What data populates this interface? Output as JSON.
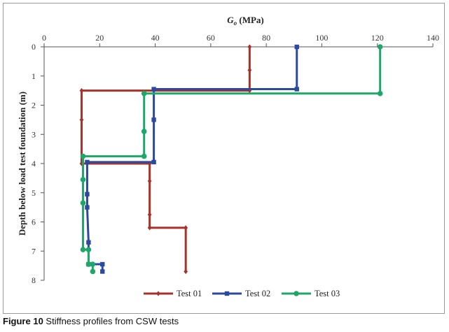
{
  "chart_data": {
    "type": "line",
    "title": "",
    "xlabel": {
      "symbol": "G",
      "subscript": "o",
      "units": " (MPa)"
    },
    "ylabel": "Depth below load test foundation (m)",
    "xlim": [
      0,
      140
    ],
    "ylim": [
      0,
      8
    ],
    "xticks": [
      0,
      20,
      40,
      60,
      80,
      100,
      120,
      140
    ],
    "yticks": [
      0,
      1,
      2,
      3,
      4,
      5,
      6,
      7,
      8
    ],
    "x_axis_position": "top",
    "y_axis_inverted": true,
    "grid": false,
    "legend_position": "bottom",
    "series": [
      {
        "name": "Test 01",
        "color": "#a8322a",
        "marker": "diamond",
        "points": [
          [
            74,
            0
          ],
          [
            74,
            0.8
          ],
          [
            74,
            1.5
          ],
          [
            13.5,
            1.5
          ],
          [
            13.5,
            2.5
          ],
          [
            13.5,
            4.0
          ],
          [
            38,
            4.0
          ],
          [
            38,
            4.6
          ],
          [
            38,
            5.75
          ],
          [
            38,
            6.2
          ],
          [
            51,
            6.2
          ],
          [
            51,
            7.7
          ]
        ]
      },
      {
        "name": "Test 02",
        "color": "#2a4a9e",
        "marker": "square",
        "points": [
          [
            91,
            0
          ],
          [
            91,
            1.45
          ],
          [
            39.5,
            1.45
          ],
          [
            39.5,
            2.5
          ],
          [
            39.5,
            3.95
          ],
          [
            15.5,
            3.95
          ],
          [
            15.5,
            5.05
          ],
          [
            15.5,
            5.5
          ],
          [
            16,
            6.7
          ],
          [
            16,
            7.45
          ],
          [
            21,
            7.45
          ],
          [
            21,
            7.7
          ]
        ]
      },
      {
        "name": "Test 03",
        "color": "#1fa76a",
        "marker": "circle",
        "points": [
          [
            121,
            0
          ],
          [
            121,
            1.6
          ],
          [
            36,
            1.6
          ],
          [
            36,
            2.9
          ],
          [
            36,
            3.75
          ],
          [
            14,
            3.75
          ],
          [
            14,
            4.55
          ],
          [
            14,
            5.35
          ],
          [
            14,
            6.95
          ],
          [
            16,
            6.95
          ],
          [
            16,
            7.45
          ],
          [
            17.5,
            7.45
          ],
          [
            17.5,
            7.7
          ]
        ]
      }
    ]
  },
  "caption": {
    "label": "Figure 10",
    "text": " Stiffness profiles from CSW tests"
  }
}
